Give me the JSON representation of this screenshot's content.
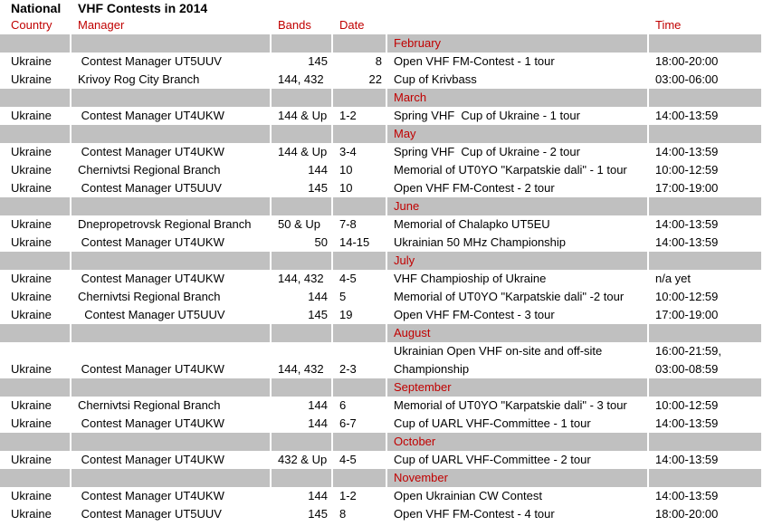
{
  "title": {
    "left": "National",
    "main": "VHF Contests in 2014"
  },
  "columns": [
    "Country",
    "Manager",
    "Bands",
    "Date",
    "",
    "Time"
  ],
  "colors": {
    "header_text": "#c00000",
    "month_band": "#c0c0c0"
  },
  "rows": [
    {
      "month": "February"
    },
    {
      "country": "Ukraine",
      "manager": " Contest Manager UT5UUV",
      "bands": "145",
      "bands_right": true,
      "date": "8",
      "date_right": true,
      "contest": "Open VHF FM-Contest - 1 tour",
      "time": "18:00-20:00"
    },
    {
      "country": "Ukraine",
      "manager": "Krivoy Rog City Branch",
      "bands": "144, 432",
      "date": "22",
      "date_right": true,
      "contest": "Cup of Krivbass",
      "time": "03:00-06:00"
    },
    {
      "month": "March"
    },
    {
      "country": "Ukraine",
      "manager": " Contest Manager UT4UKW",
      "bands": "144 & Up",
      "date": "1-2",
      "contest": "Spring VHF  Cup of Ukraine - 1 tour",
      "time": "14:00-13:59"
    },
    {
      "month": "May"
    },
    {
      "country": "Ukraine",
      "manager": " Contest Manager UT4UKW",
      "bands": "144 & Up",
      "date": "3-4",
      "contest": "Spring VHF  Cup of Ukraine - 2 tour",
      "time": "14:00-13:59"
    },
    {
      "country": "Ukraine",
      "manager": "Chernivtsi Regional Branch",
      "bands": "144",
      "bands_right": true,
      "date": "10",
      "contest": "Memorial of UT0YO \"Karpatskie dali\" - 1 tour",
      "time": "10:00-12:59"
    },
    {
      "country": "Ukraine",
      "manager": " Contest Manager UT5UUV",
      "bands": "145",
      "bands_right": true,
      "date": "10",
      "contest": "Open VHF FM-Contest - 2 tour",
      "time": "17:00-19:00"
    },
    {
      "month": "June"
    },
    {
      "country": "Ukraine",
      "manager": "Dnepropetrovsk Regional Branch",
      "bands": "50 & Up",
      "date": "7-8",
      "contest": "Memorial of Chalapko UT5EU",
      "time": "14:00-13:59"
    },
    {
      "country": "Ukraine",
      "manager": " Contest Manager UT4UKW",
      "bands": "50",
      "bands_right": true,
      "date": "14-15",
      "contest": "Ukrainian 50 MHz Championship",
      "time": "14:00-13:59"
    },
    {
      "month": "July"
    },
    {
      "country": "Ukraine",
      "manager": " Contest Manager UT4UKW",
      "bands": "144, 432",
      "date": "4-5",
      "contest": "VHF Champioship of Ukraine",
      "time": "n/a yet"
    },
    {
      "country": "Ukraine",
      "manager": "Chernivtsi Regional Branch",
      "bands": "144",
      "bands_right": true,
      "date": "5",
      "contest": "Memorial of UT0YO \"Karpatskie dali\" -2 tour",
      "time": "10:00-12:59"
    },
    {
      "country": "Ukraine",
      "manager": "  Contest Manager UT5UUV",
      "bands": "145",
      "bands_right": true,
      "date": "19",
      "contest": "Open VHF FM-Contest - 3 tour",
      "time": "17:00-19:00"
    },
    {
      "month": "August"
    },
    {
      "country": "Ukraine",
      "manager": " Contest Manager UT4UKW",
      "bands": "144, 432",
      "date": "2-3",
      "contest": "Ukrainian Open VHF on-site and off-site Championship",
      "time": "16:00-21:59, 03:00-08:59",
      "tall": true
    },
    {
      "month": "September"
    },
    {
      "country": "Ukraine",
      "manager": "Chernivtsi Regional Branch",
      "bands": "144",
      "bands_right": true,
      "date": "6",
      "contest": "Memorial of UT0YO \"Karpatskie dali\" - 3 tour",
      "time": "10:00-12:59"
    },
    {
      "country": "Ukraine",
      "manager": " Contest Manager UT4UKW",
      "bands": "144",
      "bands_right": true,
      "date": "6-7",
      "contest": "Cup of UARL VHF-Committee - 1 tour",
      "time": "14:00-13:59"
    },
    {
      "month": "October"
    },
    {
      "country": "Ukraine",
      "manager": " Contest Manager UT4UKW",
      "bands": "432 & Up",
      "date": "4-5",
      "contest": "Cup of UARL VHF-Committee - 2 tour",
      "time": "14:00-13:59"
    },
    {
      "month": "November"
    },
    {
      "country": "Ukraine",
      "manager": " Contest Manager UT4UKW",
      "bands": "144",
      "bands_right": true,
      "date": "1-2",
      "contest": "Open Ukrainian CW Contest",
      "time": "14:00-13:59"
    },
    {
      "country": "Ukraine",
      "manager": " Contest Manager UT5UUV",
      "bands": "145",
      "bands_right": true,
      "date": "8",
      "contest": "Open VHF FM-Contest - 4 tour",
      "time": "18:00-20:00"
    }
  ]
}
